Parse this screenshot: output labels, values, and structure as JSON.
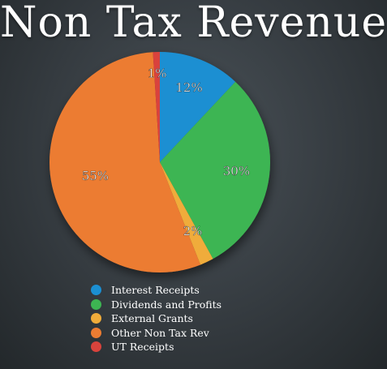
{
  "chart_data": {
    "type": "pie",
    "title": "Non Tax Revenue",
    "slices": [
      {
        "label": "Interest Receipts",
        "value": 12,
        "display": "12%",
        "color": "#1b8fd2"
      },
      {
        "label": "Dividends and Profits",
        "value": 30,
        "display": "30%",
        "color": "#3db552"
      },
      {
        "label": "External Grants",
        "value": 2,
        "display": "2%",
        "color": "#f0ac3a"
      },
      {
        "label": "Other Non Tax Rev",
        "value": 55,
        "display": "55%",
        "color": "#ec7c32"
      },
      {
        "label": "UT Receipts",
        "value": 1,
        "display": "1%",
        "color": "#d9433c"
      }
    ],
    "legend_position": "bottom"
  }
}
